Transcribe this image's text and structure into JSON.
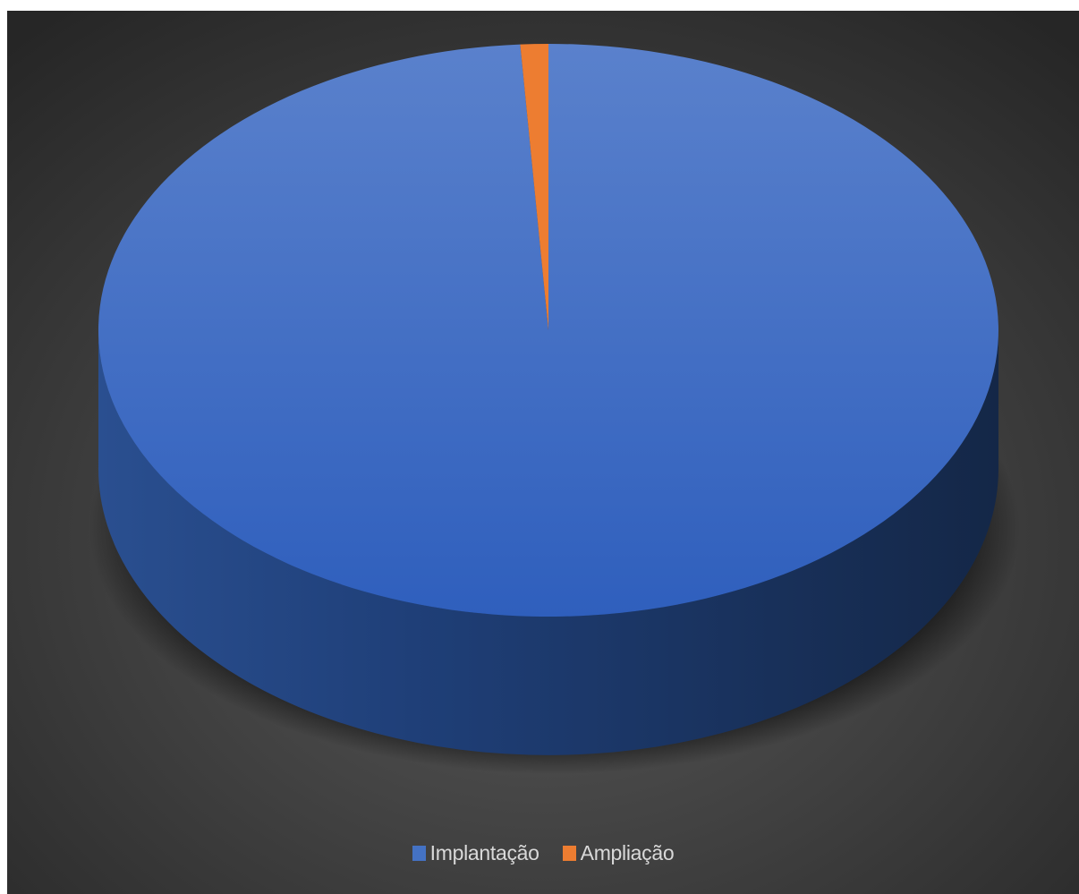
{
  "chart_data": {
    "type": "pie",
    "style": "3d-pie",
    "title": "",
    "series": [
      {
        "values": [
          99,
          1
        ],
        "categories": [
          "Implantação",
          "Ampliação"
        ]
      }
    ],
    "colors": {
      "Implantação": "#4472c4",
      "Ampliação": "#ed7d31",
      "background": "#404040"
    },
    "legend_position": "bottom",
    "legend": [
      {
        "label": "Implantação",
        "color": "#4472c4"
      },
      {
        "label": "Ampliação",
        "color": "#ed7d31"
      }
    ]
  }
}
